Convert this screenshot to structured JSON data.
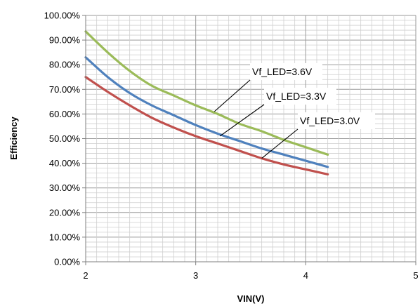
{
  "chart_data": {
    "type": "line",
    "xlabel": "VIN(V)",
    "ylabel": "Efficiency",
    "xlim": [
      2,
      5
    ],
    "ylim": [
      0,
      1
    ],
    "x_ticks": [
      2,
      3,
      4,
      5
    ],
    "x_tick_labels": [
      "2",
      "3",
      "4",
      "5"
    ],
    "y_ticks": [
      0,
      0.1,
      0.2,
      0.3,
      0.4,
      0.5,
      0.6,
      0.7,
      0.8,
      0.9,
      1.0
    ],
    "y_tick_labels": [
      "0.00%",
      "10.00%",
      "20.00%",
      "30.00%",
      "40.00%",
      "50.00%",
      "60.00%",
      "70.00%",
      "80.00%",
      "90.00%",
      "100.00%"
    ],
    "grid": true,
    "legend": "callout labels",
    "series": [
      {
        "name": "Vf_LED=3.6V",
        "color": "#9BBB59",
        "x": [
          2.0,
          2.2,
          2.4,
          2.6,
          2.8,
          3.0,
          3.2,
          3.4,
          3.6,
          3.8,
          4.0,
          4.2
        ],
        "y": [
          0.935,
          0.85,
          0.775,
          0.715,
          0.675,
          0.635,
          0.6,
          0.56,
          0.53,
          0.495,
          0.465,
          0.435
        ]
      },
      {
        "name": "Vf_LED=3.3V",
        "color": "#4F81BD",
        "x": [
          2.0,
          2.2,
          2.4,
          2.6,
          2.8,
          3.0,
          3.2,
          3.4,
          3.6,
          3.8,
          4.0,
          4.2
        ],
        "y": [
          0.83,
          0.75,
          0.685,
          0.635,
          0.595,
          0.555,
          0.52,
          0.49,
          0.46,
          0.435,
          0.41,
          0.385
        ]
      },
      {
        "name": "Vf_LED=3.0V",
        "color": "#C0504D",
        "x": [
          2.0,
          2.2,
          2.4,
          2.6,
          2.8,
          3.0,
          3.2,
          3.4,
          3.6,
          3.8,
          4.0,
          4.2
        ],
        "y": [
          0.75,
          0.69,
          0.635,
          0.585,
          0.545,
          0.51,
          0.48,
          0.45,
          0.42,
          0.395,
          0.375,
          0.355
        ]
      }
    ],
    "callouts": [
      {
        "text": "Vf_LED=3.6V",
        "series": "Vf_LED=3.6V",
        "point": [
          3.17,
          0.61
        ]
      },
      {
        "text": "Vf_LED=3.3V",
        "series": "Vf_LED=3.3V",
        "point": [
          3.22,
          0.51
        ]
      },
      {
        "text": "Vf_LED=3.0V",
        "series": "Vf_LED=3.0V",
        "point": [
          3.6,
          0.42
        ]
      }
    ]
  }
}
